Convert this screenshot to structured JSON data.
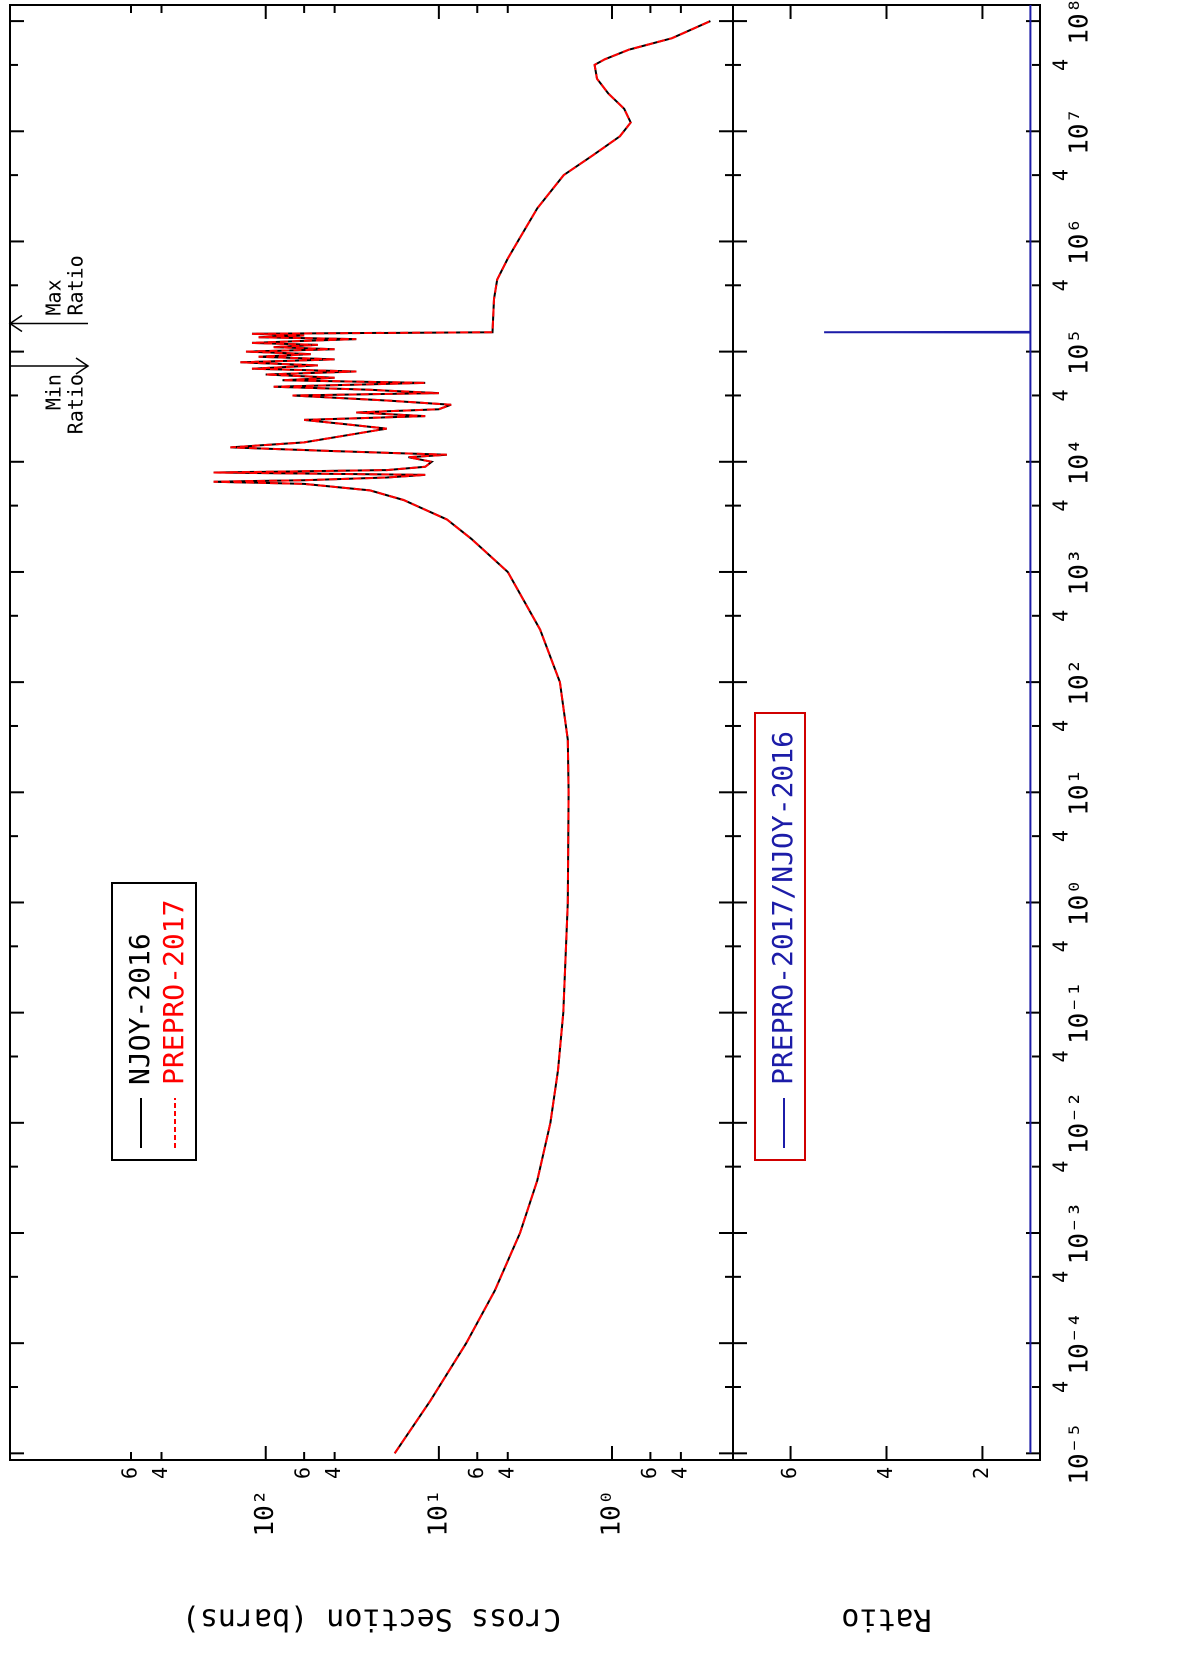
{
  "chart_data": [
    {
      "type": "line",
      "y_label": "Cross Section (barns)",
      "log_x": true,
      "log_y": true,
      "xlim": [
        8.7e-06,
        140000000.0
      ],
      "ylim": [
        0.2,
        3000
      ],
      "yticks": [
        {
          "value": 600,
          "label": "6"
        },
        {
          "value": 400,
          "label": "4"
        },
        {
          "value": 100,
          "label": "10²"
        },
        {
          "value": 60,
          "label": "6"
        },
        {
          "value": 40,
          "label": "4"
        },
        {
          "value": 10,
          "label": "10¹"
        },
        6,
        4,
        {
          "value": 1,
          "label": "10⁰"
        },
        {
          "value": 0.6,
          "label": "6"
        },
        {
          "value": 0.4,
          "label": "4"
        }
      ],
      "x": [
        1e-05,
        3e-05,
        0.0001,
        0.0003,
        0.001,
        0.003,
        0.01,
        0.03,
        0.1,
        1,
        10,
        30,
        100,
        300,
        1000,
        2000,
        3000,
        4500,
        5500,
        6300,
        6600,
        6800,
        7200,
        7600,
        8000,
        8400,
        9000,
        10000,
        11000,
        11600,
        12500,
        13500,
        15000,
        18000,
        20000,
        22000,
        24000,
        26000,
        28000,
        30000,
        33000,
        36000,
        40000,
        42000,
        45000,
        48000,
        52000,
        55000,
        58000,
        62000,
        66000,
        70000,
        75000,
        80000,
        85000,
        90000,
        95000,
        100000,
        105000,
        110000,
        115000,
        120000,
        125000,
        130000,
        135000,
        140000,
        145000,
        150000,
        300000,
        450000,
        700000,
        1000000,
        2000000,
        4000000,
        6000000,
        9000000,
        12000000,
        16000000,
        22000000,
        30000000,
        40000000,
        45000000,
        55000000,
        70000000,
        100000000
      ],
      "series": [
        {
          "name": "NJOY-2016",
          "color": "#000000",
          "dash": false,
          "values": [
            18,
            11.2,
            6.95,
            4.75,
            3.4,
            2.7,
            2.27,
            2.05,
            1.91,
            1.8,
            1.78,
            1.8,
            2.0,
            2.6,
            4,
            6.5,
            9,
            16,
            25,
            60,
            200,
            60,
            20,
            12,
            200,
            20,
            12,
            11,
            15,
            9,
            40,
            160,
            60,
            30,
            20,
            35,
            60,
            12,
            30,
            10,
            8.5,
            20,
            70,
            10,
            25,
            90,
            12,
            80,
            40,
            100,
            30,
            120,
            50,
            140,
            40,
            110,
            55,
            130,
            40,
            90,
            50,
            120,
            60,
            30,
            110,
            60,
            120,
            4.9,
            4.8,
            4.6,
            4,
            3.5,
            2.7,
            1.9,
            1.3,
            0.9,
            0.78,
            0.85,
            1.05,
            1.22,
            1.26,
            1.1,
            0.8,
            0.45,
            0.27
          ]
        },
        {
          "name": "PREPRO-2017",
          "color": "#ff0000",
          "dash": true,
          "values": [
            18,
            11.2,
            6.95,
            4.75,
            3.4,
            2.7,
            2.27,
            2.05,
            1.91,
            1.8,
            1.78,
            1.8,
            2.0,
            2.6,
            4,
            6.5,
            9,
            16,
            25,
            60,
            200,
            60,
            20,
            12,
            200,
            20,
            12,
            11,
            15,
            9,
            40,
            160,
            60,
            30,
            20,
            35,
            60,
            12,
            30,
            10,
            8.5,
            20,
            70,
            10,
            25,
            90,
            12,
            80,
            40,
            100,
            30,
            120,
            50,
            140,
            40,
            110,
            55,
            130,
            40,
            90,
            50,
            120,
            60,
            30,
            110,
            60,
            120,
            4.9,
            4.8,
            4.6,
            4,
            3.5,
            2.7,
            1.9,
            1.3,
            0.9,
            0.78,
            0.85,
            1.05,
            1.22,
            1.26,
            1.1,
            0.8,
            0.45,
            0.27
          ]
        }
      ],
      "annotations": [
        {
          "lines": [
            "Min",
            "Ratio"
          ],
          "x": 74000,
          "direction": "up"
        },
        {
          "lines": [
            "Max",
            "Ratio"
          ],
          "x": 180000,
          "direction": "down"
        }
      ]
    },
    {
      "type": "line",
      "y_label": "Ratio",
      "log_x": true,
      "xlim": [
        8.7e-06,
        140000000.0
      ],
      "ylim": [
        0.8,
        7.2
      ],
      "yticks": [
        2,
        4,
        6
      ],
      "xticks": [
        {
          "value": 1e-05,
          "label": "10⁻⁵"
        },
        {
          "value": 4e-05,
          "label": "4"
        },
        {
          "value": 0.0001,
          "label": "10⁻⁴"
        },
        {
          "value": 0.0004,
          "label": "4"
        },
        {
          "value": 0.001,
          "label": "10⁻³"
        },
        {
          "value": 0.004,
          "label": "4"
        },
        {
          "value": 0.01,
          "label": "10⁻²"
        },
        {
          "value": 0.04,
          "label": "4"
        },
        {
          "value": 0.1,
          "label": "10⁻¹"
        },
        {
          "value": 0.4,
          "label": "4"
        },
        {
          "value": 1,
          "label": "10⁰"
        },
        4,
        {
          "value": 10,
          "label": "10¹"
        },
        {
          "value": 40,
          "label": "4"
        },
        {
          "value": 100,
          "label": "10²"
        },
        {
          "value": 400,
          "label": "4"
        },
        {
          "value": 1000,
          "label": "10³"
        },
        {
          "value": 4000,
          "label": "4"
        },
        {
          "value": 10000,
          "label": "10⁴"
        },
        {
          "value": 40000,
          "label": "4"
        },
        {
          "value": 100000,
          "label": "10⁵"
        },
        {
          "value": 400000,
          "label": "4"
        },
        {
          "value": 1000000,
          "label": "10⁶"
        },
        {
          "value": 4000000,
          "label": "4"
        },
        {
          "value": 10000000,
          "label": "10⁷"
        },
        {
          "value": 40000000,
          "label": "4"
        },
        {
          "value": 100000000,
          "label": "10⁸"
        }
      ],
      "x": [
        1e-05,
        149000,
        150000,
        151000,
        140000000.0
      ],
      "series": [
        {
          "name": "PREPRO-2017/NJOY-2016",
          "color": "#1c1ca8",
          "dash": false,
          "values": [
            1,
            1,
            5.3,
            1,
            1
          ]
        }
      ]
    }
  ]
}
